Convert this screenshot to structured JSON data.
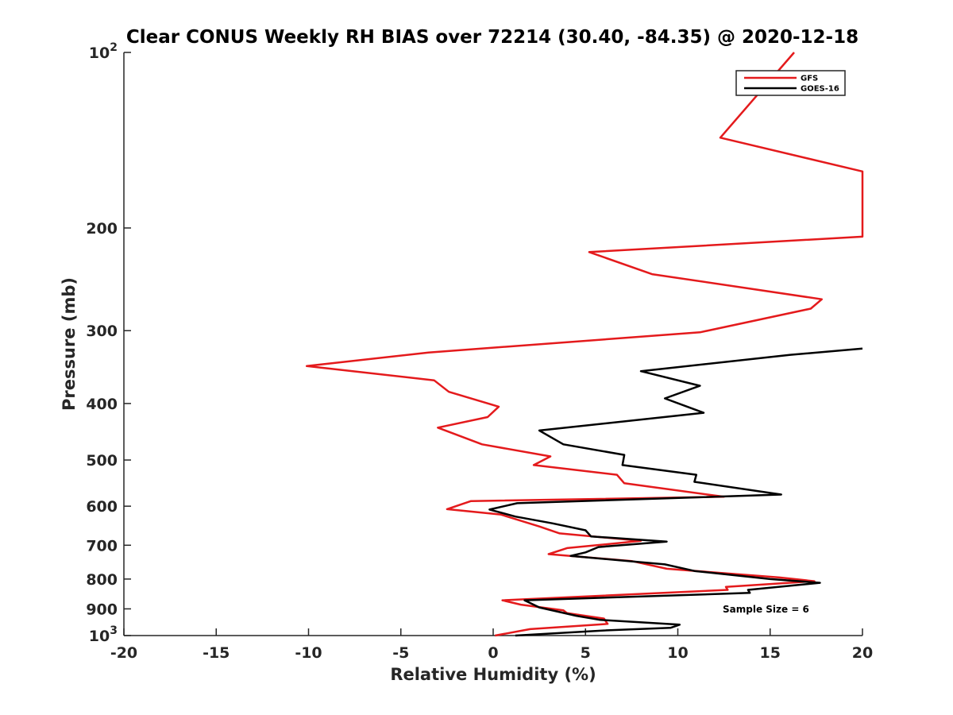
{
  "chart_data": {
    "type": "line",
    "title": "Clear CONUS Weekly RH BIAS over 72214 (30.40, -84.35) @ 2020-12-18",
    "xlabel": "Relative Humidity (%)",
    "ylabel": "Pressure (mb)",
    "xlim": [
      -20,
      20
    ],
    "ylim": [
      100,
      1000
    ],
    "yscale": "log",
    "y_reversed": true,
    "grid": false,
    "legend_position": "top-right",
    "x_ticks": [
      -20,
      -15,
      -10,
      -5,
      0,
      5,
      10,
      15,
      20
    ],
    "x_tick_labels": [
      "-20",
      "-15",
      "-10",
      "-5",
      "0",
      "5",
      "10",
      "15",
      "20"
    ],
    "y_ticks": [
      {
        "value": 100,
        "label": "10",
        "sup": "2"
      },
      {
        "value": 200,
        "label": "200",
        "sup": ""
      },
      {
        "value": 300,
        "label": "300",
        "sup": ""
      },
      {
        "value": 400,
        "label": "400",
        "sup": ""
      },
      {
        "value": 500,
        "label": "500",
        "sup": ""
      },
      {
        "value": 600,
        "label": "600",
        "sup": ""
      },
      {
        "value": 700,
        "label": "700",
        "sup": ""
      },
      {
        "value": 800,
        "label": "800",
        "sup": ""
      },
      {
        "value": 900,
        "label": "900",
        "sup": ""
      },
      {
        "value": 1000,
        "label": "10",
        "sup": "3"
      }
    ],
    "annotation": "Sample Size = 6",
    "series": [
      {
        "name": "GFS",
        "color": "#e41a1c",
        "points": [
          [
            16.3,
            100
          ],
          [
            12.3,
            140
          ],
          [
            20.0,
            160
          ],
          [
            20.0,
            160
          ],
          [
            20.0,
            207
          ],
          [
            5.2,
            220
          ],
          [
            8.6,
            240
          ],
          [
            17.8,
            265
          ],
          [
            17.2,
            275
          ],
          [
            11.2,
            302
          ],
          [
            -3.5,
            327
          ],
          [
            -10.1,
            345
          ],
          [
            -3.2,
            365
          ],
          [
            -2.4,
            382
          ],
          [
            0.3,
            405
          ],
          [
            -0.3,
            422
          ],
          [
            -3.0,
            440
          ],
          [
            -0.6,
            470
          ],
          [
            3.1,
            493
          ],
          [
            2.2,
            510
          ],
          [
            6.7,
            530
          ],
          [
            7.1,
            548
          ],
          [
            12.5,
            578
          ],
          [
            -1.2,
            588
          ],
          [
            -2.5,
            607
          ],
          [
            0.4,
            620
          ],
          [
            2.5,
            650
          ],
          [
            3.6,
            668
          ],
          [
            8.0,
            688
          ],
          [
            4.0,
            708
          ],
          [
            3.0,
            725
          ],
          [
            7.5,
            745
          ],
          [
            9.4,
            768
          ],
          [
            15.5,
            795
          ],
          [
            17.4,
            807
          ],
          [
            12.6,
            825
          ],
          [
            12.7,
            835
          ],
          [
            0.5,
            870
          ],
          [
            1.5,
            885
          ],
          [
            3.8,
            905
          ],
          [
            4.0,
            915
          ],
          [
            6.0,
            935
          ],
          [
            6.2,
            955
          ],
          [
            2.0,
            975
          ],
          [
            0.1,
            1000
          ]
        ]
      },
      {
        "name": "GOES-16",
        "color": "#000000",
        "points": [
          [
            20.0,
            322
          ],
          [
            16.1,
            330
          ],
          [
            8.0,
            352
          ],
          [
            11.2,
            373
          ],
          [
            9.3,
            392
          ],
          [
            11.4,
            415
          ],
          [
            2.5,
            445
          ],
          [
            3.8,
            470
          ],
          [
            7.1,
            490
          ],
          [
            7.0,
            510
          ],
          [
            11.0,
            530
          ],
          [
            10.9,
            545
          ],
          [
            15.6,
            573
          ],
          [
            1.3,
            593
          ],
          [
            -0.2,
            608
          ],
          [
            1.2,
            625
          ],
          [
            3.2,
            642
          ],
          [
            5.0,
            660
          ],
          [
            5.3,
            676
          ],
          [
            9.4,
            690
          ],
          [
            5.7,
            705
          ],
          [
            5.0,
            720
          ],
          [
            4.2,
            730
          ],
          [
            9.3,
            755
          ],
          [
            10.9,
            775
          ],
          [
            15.0,
            800
          ],
          [
            17.7,
            812
          ],
          [
            13.8,
            835
          ],
          [
            13.9,
            845
          ],
          [
            1.7,
            870
          ],
          [
            2.5,
            895
          ],
          [
            3.5,
            910
          ],
          [
            4.5,
            925
          ],
          [
            5.8,
            940
          ],
          [
            10.1,
            958
          ],
          [
            9.6,
            970
          ],
          [
            6.0,
            980
          ],
          [
            1.2,
            1000
          ]
        ]
      }
    ]
  }
}
